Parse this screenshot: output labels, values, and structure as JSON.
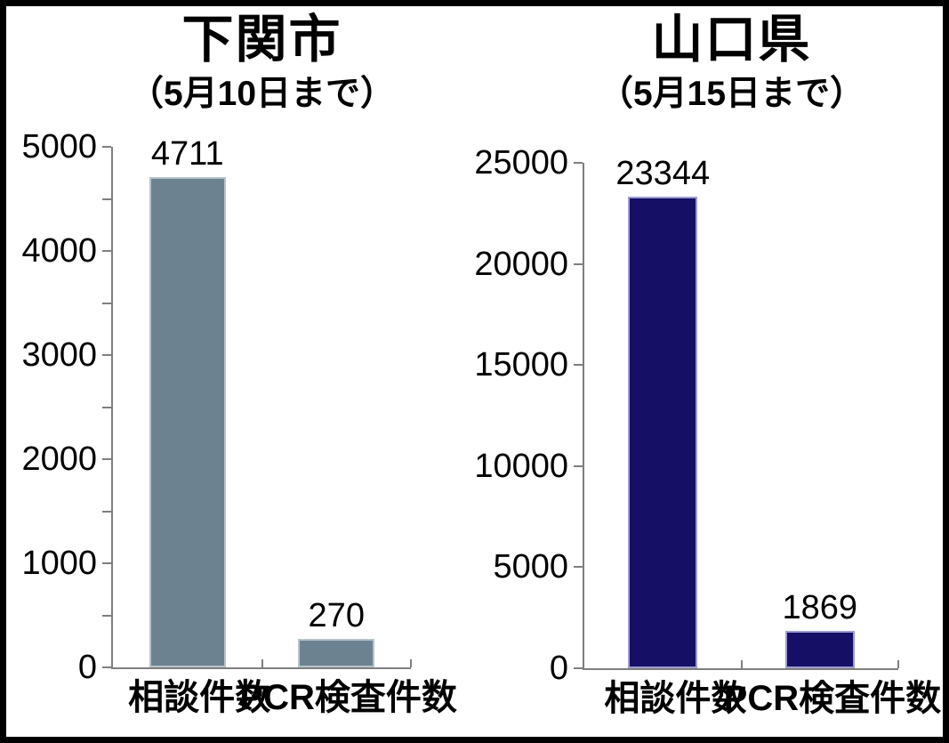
{
  "figure": {
    "background_color": "#ffffff",
    "frame_color": "#000000",
    "axis_color": "#7f7f7f",
    "text_color": "#000000"
  },
  "chart_data": [
    {
      "type": "bar",
      "title": "下関市",
      "subtitle": "（5月10日まで）",
      "categories": [
        "相談件数",
        "PCR検査件数"
      ],
      "values": [
        4711,
        270
      ],
      "value_labels": [
        "4711",
        "270"
      ],
      "ylim": [
        0,
        5000
      ],
      "ytick_major_step": 1000,
      "ytick_minor_step": 500,
      "ytick_labels": [
        "0",
        "1000",
        "2000",
        "3000",
        "4000",
        "5000"
      ],
      "grid": false,
      "legend": "none",
      "bar_color": "#6c8290",
      "bar_border_color": "#b7c3ca"
    },
    {
      "type": "bar",
      "title": "山口県",
      "subtitle": "（5月15日まで）",
      "categories": [
        "相談件数",
        "PCR検査件数"
      ],
      "values": [
        23344,
        1869
      ],
      "value_labels": [
        "23344",
        "1869"
      ],
      "ylim": [
        0,
        25000
      ],
      "ytick_major_step": 5000,
      "ytick_minor_step": 5000,
      "ytick_labels": [
        "0",
        "5000",
        "10000",
        "15000",
        "20000",
        "25000"
      ],
      "grid": false,
      "legend": "none",
      "bar_color": "#150f66",
      "bar_border_color": "#9c9cce"
    }
  ]
}
